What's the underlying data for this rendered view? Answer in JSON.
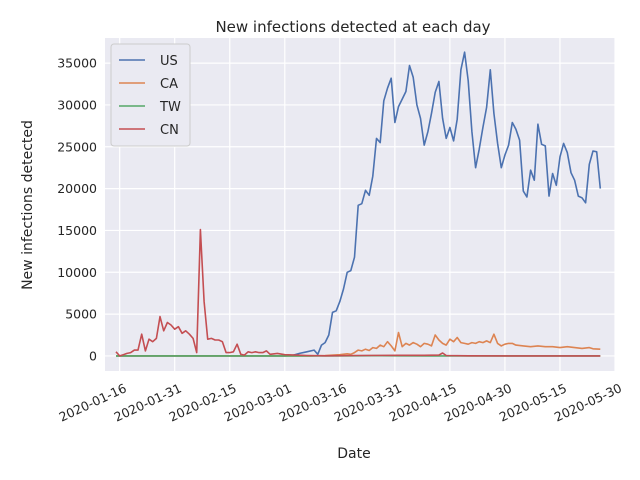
{
  "chart_data": {
    "type": "line",
    "title": "New infections detected at each day",
    "xlabel": "Date",
    "ylabel": "New infections detected",
    "x_tick_labels": [
      "2020-01-16",
      "2020-01-31",
      "2020-02-15",
      "2020-03-01",
      "2020-03-16",
      "2020-03-31",
      "2020-04-15",
      "2020-04-30",
      "2020-05-15",
      "2020-05-30"
    ],
    "y_tick_labels": [
      "0",
      "5000",
      "10000",
      "15000",
      "20000",
      "25000",
      "30000",
      "35000"
    ],
    "y_ticks": [
      0,
      5000,
      10000,
      15000,
      20000,
      25000,
      30000,
      35000
    ],
    "xlim": [
      "2020-01-12",
      "2020-05-30"
    ],
    "ylim": [
      -1800,
      38000
    ],
    "grid": true,
    "legend": "upper left",
    "background": "#eaeaf2",
    "series": [
      {
        "name": "US",
        "color": "#4c72b0",
        "points": [
          [
            "2020-01-15",
            0
          ],
          [
            "2020-02-25",
            0
          ],
          [
            "2020-03-01",
            10
          ],
          [
            "2020-03-03",
            50
          ],
          [
            "2020-03-05",
            300
          ],
          [
            "2020-03-07",
            500
          ],
          [
            "2020-03-09",
            700
          ],
          [
            "2020-03-10",
            200
          ],
          [
            "2020-03-11",
            1300
          ],
          [
            "2020-03-12",
            1600
          ],
          [
            "2020-03-13",
            2500
          ],
          [
            "2020-03-14",
            5200
          ],
          [
            "2020-03-15",
            5400
          ],
          [
            "2020-03-16",
            6500
          ],
          [
            "2020-03-17",
            8000
          ],
          [
            "2020-03-18",
            10000
          ],
          [
            "2020-03-19",
            10200
          ],
          [
            "2020-03-20",
            11800
          ],
          [
            "2020-03-21",
            18000
          ],
          [
            "2020-03-22",
            18200
          ],
          [
            "2020-03-23",
            19800
          ],
          [
            "2020-03-24",
            19200
          ],
          [
            "2020-03-25",
            21500
          ],
          [
            "2020-03-26",
            26000
          ],
          [
            "2020-03-27",
            25500
          ],
          [
            "2020-03-28",
            30500
          ],
          [
            "2020-03-29",
            32000
          ],
          [
            "2020-03-30",
            33200
          ],
          [
            "2020-03-31",
            27900
          ],
          [
            "2020-04-01",
            29800
          ],
          [
            "2020-04-02",
            30700
          ],
          [
            "2020-04-03",
            31600
          ],
          [
            "2020-04-04",
            34700
          ],
          [
            "2020-04-05",
            33300
          ],
          [
            "2020-04-06",
            30000
          ],
          [
            "2020-04-07",
            28400
          ],
          [
            "2020-04-08",
            25200
          ],
          [
            "2020-04-09",
            26800
          ],
          [
            "2020-04-10",
            29000
          ],
          [
            "2020-04-11",
            31500
          ],
          [
            "2020-04-12",
            32800
          ],
          [
            "2020-04-13",
            28400
          ],
          [
            "2020-04-14",
            26000
          ],
          [
            "2020-04-15",
            27300
          ],
          [
            "2020-04-16",
            25700
          ],
          [
            "2020-04-17",
            28300
          ],
          [
            "2020-04-18",
            34200
          ],
          [
            "2020-04-19",
            36300
          ],
          [
            "2020-04-20",
            32900
          ],
          [
            "2020-04-21",
            26800
          ],
          [
            "2020-04-22",
            22500
          ],
          [
            "2020-04-23",
            24700
          ],
          [
            "2020-04-24",
            27300
          ],
          [
            "2020-04-25",
            29700
          ],
          [
            "2020-04-26",
            34200
          ],
          [
            "2020-04-27",
            29000
          ],
          [
            "2020-04-28",
            25400
          ],
          [
            "2020-04-29",
            22500
          ],
          [
            "2020-04-30",
            24000
          ],
          [
            "2020-05-01",
            25200
          ],
          [
            "2020-05-02",
            27900
          ],
          [
            "2020-05-03",
            27100
          ],
          [
            "2020-05-04",
            25800
          ],
          [
            "2020-05-05",
            19700
          ],
          [
            "2020-05-06",
            19000
          ],
          [
            "2020-05-07",
            22200
          ],
          [
            "2020-05-08",
            21000
          ],
          [
            "2020-05-09",
            27700
          ],
          [
            "2020-05-10",
            25300
          ],
          [
            "2020-05-11",
            25100
          ],
          [
            "2020-05-12",
            19100
          ],
          [
            "2020-05-13",
            21800
          ],
          [
            "2020-05-14",
            20400
          ],
          [
            "2020-05-15",
            23800
          ],
          [
            "2020-05-16",
            25400
          ],
          [
            "2020-05-17",
            24300
          ],
          [
            "2020-05-18",
            21900
          ],
          [
            "2020-05-19",
            21000
          ],
          [
            "2020-05-20",
            19100
          ],
          [
            "2020-05-21",
            18900
          ],
          [
            "2020-05-22",
            18300
          ],
          [
            "2020-05-23",
            22900
          ],
          [
            "2020-05-24",
            24500
          ],
          [
            "2020-05-25",
            24400
          ],
          [
            "2020-05-26",
            20000
          ]
        ]
      },
      {
        "name": "CA",
        "color": "#dd8452",
        "points": [
          [
            "2020-01-15",
            0
          ],
          [
            "2020-03-08",
            0
          ],
          [
            "2020-03-12",
            50
          ],
          [
            "2020-03-16",
            150
          ],
          [
            "2020-03-18",
            250
          ],
          [
            "2020-03-19",
            200
          ],
          [
            "2020-03-20",
            400
          ],
          [
            "2020-03-21",
            700
          ],
          [
            "2020-03-22",
            600
          ],
          [
            "2020-03-23",
            800
          ],
          [
            "2020-03-24",
            650
          ],
          [
            "2020-03-25",
            1000
          ],
          [
            "2020-03-26",
            900
          ],
          [
            "2020-03-27",
            1300
          ],
          [
            "2020-03-28",
            1100
          ],
          [
            "2020-03-29",
            1700
          ],
          [
            "2020-03-30",
            1200
          ],
          [
            "2020-03-31",
            600
          ],
          [
            "2020-04-01",
            2800
          ],
          [
            "2020-04-02",
            1100
          ],
          [
            "2020-04-03",
            1500
          ],
          [
            "2020-04-04",
            1300
          ],
          [
            "2020-04-05",
            1600
          ],
          [
            "2020-04-06",
            1400
          ],
          [
            "2020-04-07",
            1100
          ],
          [
            "2020-04-08",
            1500
          ],
          [
            "2020-04-09",
            1400
          ],
          [
            "2020-04-10",
            1200
          ],
          [
            "2020-04-11",
            2500
          ],
          [
            "2020-04-12",
            1900
          ],
          [
            "2020-04-13",
            1500
          ],
          [
            "2020-04-14",
            1300
          ],
          [
            "2020-04-15",
            2000
          ],
          [
            "2020-04-16",
            1700
          ],
          [
            "2020-04-17",
            2200
          ],
          [
            "2020-04-18",
            1600
          ],
          [
            "2020-04-19",
            1500
          ],
          [
            "2020-04-20",
            1400
          ],
          [
            "2020-04-21",
            1600
          ],
          [
            "2020-04-22",
            1500
          ],
          [
            "2020-04-23",
            1700
          ],
          [
            "2020-04-24",
            1600
          ],
          [
            "2020-04-25",
            1800
          ],
          [
            "2020-04-26",
            1600
          ],
          [
            "2020-04-27",
            2600
          ],
          [
            "2020-04-28",
            1500
          ],
          [
            "2020-04-29",
            1200
          ],
          [
            "2020-04-30",
            1400
          ],
          [
            "2020-05-01",
            1500
          ],
          [
            "2020-05-02",
            1500
          ],
          [
            "2020-05-03",
            1300
          ],
          [
            "2020-05-05",
            1200
          ],
          [
            "2020-05-07",
            1100
          ],
          [
            "2020-05-09",
            1200
          ],
          [
            "2020-05-11",
            1100
          ],
          [
            "2020-05-13",
            1100
          ],
          [
            "2020-05-15",
            1000
          ],
          [
            "2020-05-17",
            1100
          ],
          [
            "2020-05-19",
            1000
          ],
          [
            "2020-05-21",
            900
          ],
          [
            "2020-05-23",
            1000
          ],
          [
            "2020-05-24",
            850
          ],
          [
            "2020-05-26",
            800
          ]
        ]
      },
      {
        "name": "TW",
        "color": "#55a868",
        "points": [
          [
            "2020-01-15",
            0
          ],
          [
            "2020-03-15",
            5
          ],
          [
            "2020-03-20",
            20
          ],
          [
            "2020-03-25",
            25
          ],
          [
            "2020-04-01",
            15
          ],
          [
            "2020-04-10",
            5
          ],
          [
            "2020-05-26",
            0
          ]
        ]
      },
      {
        "name": "CN",
        "color": "#c44e52",
        "points": [
          [
            "2020-01-15",
            500
          ],
          [
            "2020-01-16",
            0
          ],
          [
            "2020-01-17",
            150
          ],
          [
            "2020-01-18",
            300
          ],
          [
            "2020-01-19",
            400
          ],
          [
            "2020-01-20",
            700
          ],
          [
            "2020-01-21",
            700
          ],
          [
            "2020-01-22",
            2600
          ],
          [
            "2020-01-23",
            600
          ],
          [
            "2020-01-24",
            2000
          ],
          [
            "2020-01-25",
            1700
          ],
          [
            "2020-01-26",
            2100
          ],
          [
            "2020-01-27",
            4700
          ],
          [
            "2020-01-28",
            3000
          ],
          [
            "2020-01-29",
            4000
          ],
          [
            "2020-01-30",
            3700
          ],
          [
            "2020-01-31",
            3200
          ],
          [
            "2020-02-01",
            3500
          ],
          [
            "2020-02-02",
            2700
          ],
          [
            "2020-02-03",
            3000
          ],
          [
            "2020-02-04",
            2600
          ],
          [
            "2020-02-05",
            2100
          ],
          [
            "2020-02-06",
            400
          ],
          [
            "2020-02-07",
            15100
          ],
          [
            "2020-02-08",
            6500
          ],
          [
            "2020-02-09",
            2000
          ],
          [
            "2020-02-10",
            2100
          ],
          [
            "2020-02-11",
            1900
          ],
          [
            "2020-02-12",
            1900
          ],
          [
            "2020-02-13",
            1700
          ],
          [
            "2020-02-14",
            400
          ],
          [
            "2020-02-15",
            400
          ],
          [
            "2020-02-16",
            500
          ],
          [
            "2020-02-17",
            1400
          ],
          [
            "2020-02-18",
            200
          ],
          [
            "2020-02-19",
            100
          ],
          [
            "2020-02-20",
            500
          ],
          [
            "2020-02-21",
            400
          ],
          [
            "2020-02-22",
            500
          ],
          [
            "2020-02-23",
            400
          ],
          [
            "2020-02-24",
            400
          ],
          [
            "2020-02-25",
            600
          ],
          [
            "2020-02-26",
            200
          ],
          [
            "2020-02-28",
            300
          ],
          [
            "2020-03-01",
            150
          ],
          [
            "2020-03-04",
            100
          ],
          [
            "2020-03-07",
            50
          ],
          [
            "2020-03-12",
            20
          ],
          [
            "2020-03-20",
            50
          ],
          [
            "2020-04-01",
            80
          ],
          [
            "2020-04-08",
            80
          ],
          [
            "2020-04-12",
            100
          ],
          [
            "2020-04-13",
            350
          ],
          [
            "2020-04-14",
            50
          ],
          [
            "2020-04-20",
            20
          ],
          [
            "2020-05-01",
            5
          ],
          [
            "2020-05-26",
            5
          ]
        ]
      }
    ]
  }
}
